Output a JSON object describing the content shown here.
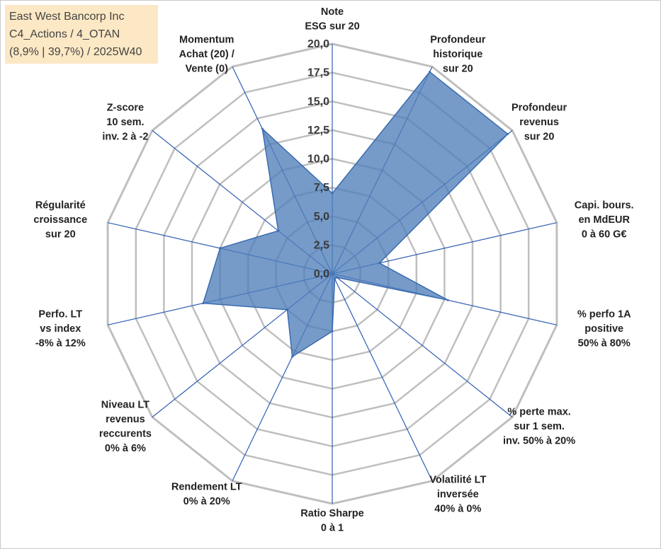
{
  "info": {
    "line1": "East West Bancorp Inc",
    "line2": "C4_Actions / 4_OTAN",
    "line3": "(8,9% | 39,7%) / 2025W40"
  },
  "colors": {
    "grid": "#bfbfbf",
    "spoke": "#2f5fb3",
    "fill": "#4f7fba",
    "outline": "#3a6bb0",
    "info_bg": "#fce8c4"
  },
  "chart_data": {
    "type": "radar",
    "title": "",
    "radial_range": [
      0,
      20
    ],
    "radial_ticks": [
      "0,0",
      "2,5",
      "5,0",
      "7,5",
      "10,0",
      "12,5",
      "15,0",
      "17,5",
      "20,0"
    ],
    "grid": true,
    "axes": [
      {
        "label": [
          "Note",
          "ESG sur 20"
        ],
        "value": 7.0
      },
      {
        "label": [
          "Profondeur",
          "historique",
          "sur 20"
        ],
        "value": 19.5
      },
      {
        "label": [
          "Profondeur",
          "revenus",
          "sur 20"
        ],
        "value": 19.5
      },
      {
        "label": [
          "Capi. bours.",
          "en MdEUR",
          "0 à 60 G€"
        ],
        "value": 4.2
      },
      {
        "label": [
          "% perfo 1A",
          "positive",
          "50% à 80%"
        ],
        "value": 10.3
      },
      {
        "label": [
          "% perte max.",
          "sur 1 sem.",
          "inv. 50% à 20%"
        ],
        "value": 0.5
      },
      {
        "label": [
          "Volatilité LT",
          "inversée",
          "40% à 0%"
        ],
        "value": 0.5
      },
      {
        "label": [
          "Ratio Sharpe",
          "0 à 1"
        ],
        "value": 5.0
      },
      {
        "label": [
          "Rendement LT",
          "0% à 20%"
        ],
        "value": 8.0
      },
      {
        "label": [
          "Niveau LT",
          "revenus",
          "reccurents",
          "0% à 6%"
        ],
        "value": 5.0
      },
      {
        "label": [
          "Perfo. LT",
          "vs index",
          "-8% à 12%"
        ],
        "value": 11.5
      },
      {
        "label": [
          "Régularité",
          "croissance",
          "sur 20"
        ],
        "value": 10.0
      },
      {
        "label": [
          "Z-score",
          "10 sem.",
          "inv. 2 à -2"
        ],
        "value": 6.0
      },
      {
        "label": [
          "Momentum",
          "Achat (20) /",
          "Vente (0)"
        ],
        "value": 14.0
      }
    ]
  }
}
